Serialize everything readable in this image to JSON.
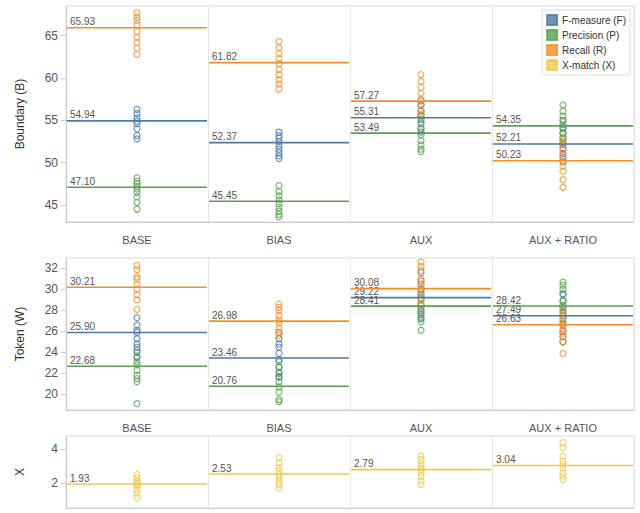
{
  "chart_data": [
    {
      "type": "scatter",
      "y_label": "Boundary (B)",
      "categories": [
        "BASE",
        "BIAS",
        "AUX",
        "AUX + RATIO"
      ],
      "ylim": [
        43,
        68.5
      ],
      "yticks": [
        45,
        50,
        55,
        60,
        65
      ],
      "grid": false,
      "legend": "upper right",
      "series": [
        {
          "name": "F-measure (F)",
          "color": "#4e79a7",
          "marker": "circle",
          "values": [
            [
              56.3,
              55.8,
              55.3,
              54.9,
              54.6,
              54.0,
              53.2,
              52.8
            ],
            [
              53.6,
              53.2,
              52.9,
              52.5,
              52.0,
              51.6,
              51.2,
              50.8,
              50.5
            ],
            [
              57.3,
              56.8,
              56.1,
              55.6,
              55.1,
              54.6,
              54.0,
              53.6
            ],
            [
              55.0,
              54.2,
              53.5,
              52.8,
              52.2,
              51.7,
              51.1,
              50.6,
              50.1
            ]
          ],
          "mean": [
            54.94,
            52.37,
            55.31,
            52.21
          ],
          "mean_labels": [
            "54.94",
            "52.37",
            "55.31",
            "52.21"
          ]
        },
        {
          "name": "Precision (P)",
          "color": "#59a14f",
          "marker": "circle",
          "values": [
            [
              48.2,
              47.8,
              47.5,
              47.2,
              46.9,
              46.5,
              46.0,
              45.3,
              44.5
            ],
            [
              47.3,
              46.6,
              46.1,
              45.6,
              45.2,
              44.7,
              44.3,
              43.9,
              43.6
            ],
            [
              55.6,
              54.8,
              54.0,
              53.3,
              52.6,
              52.1,
              51.6,
              51.3
            ],
            [
              56.8,
              56.1,
              55.5,
              55.0,
              54.5,
              54.0,
              53.5,
              53.0,
              52.5
            ]
          ],
          "mean": [
            47.1,
            45.45,
            53.49,
            54.35
          ],
          "mean_labels": [
            "47.10",
            "45.45",
            "53.49",
            "54.35"
          ]
        },
        {
          "name": "Recall (R)",
          "color": "#f28e2b",
          "marker": "circle",
          "values": [
            [
              67.7,
              67.2,
              66.8,
              66.3,
              65.5,
              64.8,
              64.2,
              63.5,
              62.8
            ],
            [
              64.3,
              63.6,
              62.9,
              62.3,
              61.7,
              61.0,
              60.4,
              59.8,
              59.3,
              58.7
            ],
            [
              60.4,
              59.6,
              58.9,
              58.2,
              57.5,
              56.9,
              56.2,
              55.8
            ],
            [
              52.8,
              52.1,
              51.5,
              50.8,
              50.2,
              49.6,
              49.0,
              48.0,
              47.1
            ]
          ],
          "mean": [
            65.93,
            61.82,
            57.27,
            50.23
          ],
          "mean_labels": [
            "65.93",
            "61.82",
            "57.27",
            "50.23"
          ]
        }
      ]
    },
    {
      "type": "scatter",
      "y_label": "Token (W)",
      "categories": [
        "BASE",
        "BIAS",
        "AUX",
        "AUX + RATIO"
      ],
      "ylim": [
        18.5,
        33
      ],
      "yticks": [
        20,
        22,
        24,
        26,
        28,
        30,
        32
      ],
      "grid": false,
      "series": [
        {
          "name": "F-measure (F)",
          "color": "#4e79a7",
          "marker": "circle",
          "values": [
            [
              27.3,
              26.6,
              26.1,
              25.9,
              25.3,
              24.8,
              24.5,
              24.0,
              23.5
            ],
            [
              25.9,
              25.3,
              24.8,
              24.5,
              23.9,
              23.3,
              22.6,
              22.0,
              21.7
            ],
            [
              31.6,
              30.8,
              30.0,
              29.5,
              29.0,
              28.5,
              28.0,
              27.6,
              27.2
            ],
            [
              29.6,
              28.9,
              28.3,
              27.8,
              27.2,
              26.6,
              26.0,
              25.5,
              25.0
            ]
          ],
          "mean": [
            25.9,
            23.46,
            29.22,
            27.49
          ],
          "mean_labels": [
            "25.90",
            "23.46",
            "29.22",
            "27.49"
          ]
        },
        {
          "name": "Precision (P)",
          "color": "#59a14f",
          "marker": "circle",
          "values": [
            [
              24.2,
              23.6,
              23.1,
              22.8,
              22.3,
              21.8,
              21.5,
              21.2,
              19.1
            ],
            [
              23.1,
              22.6,
              22.1,
              21.6,
              21.2,
              20.7,
              20.2,
              19.5,
              19.3
            ],
            [
              30.5,
              29.8,
              29.2,
              28.6,
              28.2,
              27.8,
              27.3,
              26.9,
              26.1
            ],
            [
              30.7,
              30.4,
              30.0,
              29.5,
              28.9,
              28.5,
              28.0,
              27.5,
              26.8
            ]
          ],
          "mean": [
            22.68,
            20.76,
            28.41,
            28.42
          ],
          "mean_labels": [
            "22.68",
            "20.76",
            "28.41",
            "28.42"
          ]
        },
        {
          "name": "Recall (R)",
          "color": "#f28e2b",
          "marker": "circle",
          "values": [
            [
              32.3,
              31.9,
              31.2,
              31.0,
              30.5,
              30.0,
              29.5,
              29.0,
              28.1
            ],
            [
              28.6,
              28.3,
              28.0,
              27.5,
              27.1,
              26.8,
              26.3,
              25.9,
              25.6
            ],
            [
              32.6,
              32.2,
              31.8,
              31.0,
              30.5,
              30.1,
              29.5,
              29.0,
              28.5
            ],
            [
              28.2,
              27.5,
              27.0,
              26.6,
              26.2,
              25.8,
              25.5,
              25.0,
              23.9
            ]
          ],
          "mean": [
            30.21,
            26.98,
            30.08,
            26.63
          ],
          "mean_labels": [
            "30.21",
            "26.98",
            "30.08",
            "26.63"
          ]
        }
      ]
    },
    {
      "type": "scatter",
      "y_label": "X",
      "categories": [
        "BASE",
        "BIAS",
        "AUX",
        "AUX + RATIO"
      ],
      "ylim": [
        0.5,
        4.8
      ],
      "yticks": [
        2,
        4
      ],
      "grid": false,
      "tick_labels": "y",
      "series": [
        {
          "name": "X-match (X)",
          "color": "#edc948",
          "marker": "circle",
          "values": [
            [
              2.5,
              2.3,
              2.1,
              2.0,
              1.9,
              1.8,
              1.6,
              1.4,
              1.1
            ],
            [
              3.5,
              3.2,
              2.9,
              2.7,
              2.5,
              2.3,
              2.1,
              1.9,
              1.7
            ],
            [
              3.6,
              3.4,
              3.2,
              3.0,
              2.8,
              2.6,
              2.4,
              2.1,
              1.9
            ],
            [
              4.4,
              4.1,
              3.6,
              3.3,
              3.1,
              2.9,
              2.6,
              2.4,
              2.2
            ]
          ],
          "mean": [
            1.93,
            2.53,
            2.79,
            3.04
          ],
          "mean_labels": [
            "1.93",
            "2.53",
            "2.79",
            "3.04"
          ]
        }
      ]
    }
  ]
}
